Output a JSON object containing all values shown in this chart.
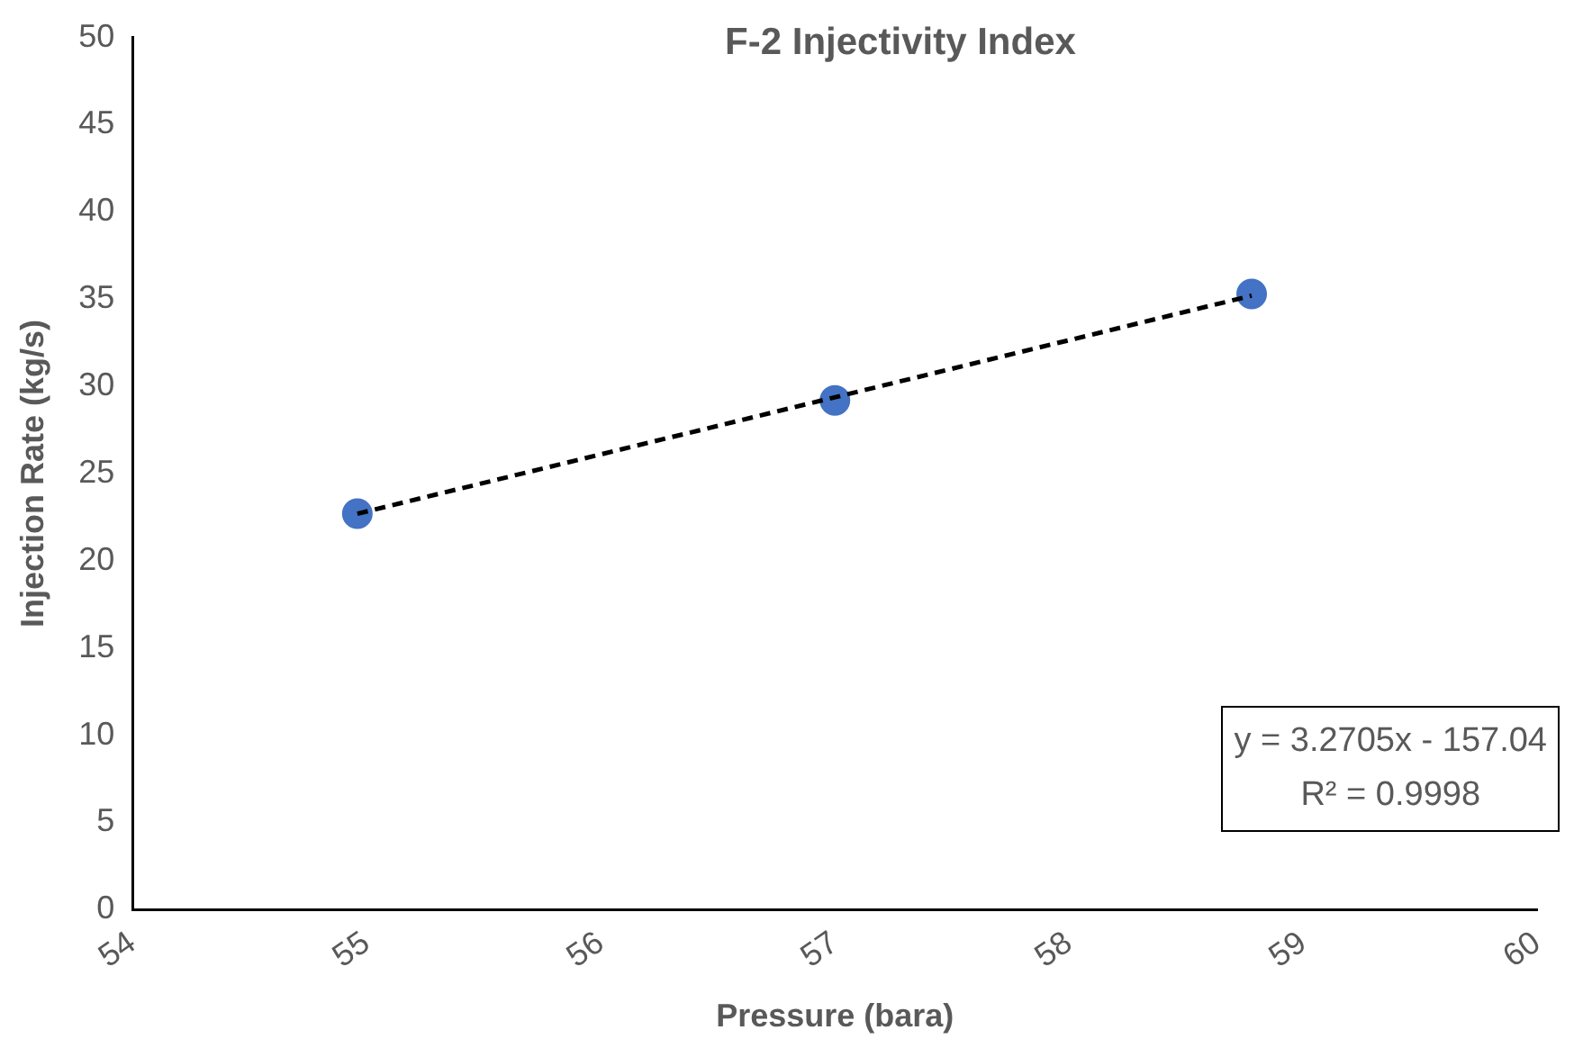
{
  "chart_data": {
    "type": "scatter",
    "title": "F-2 Injectivity Index",
    "xlabel": "Pressure (bara)",
    "ylabel": "Injection Rate (kg/s)",
    "series": [
      {
        "type": "scatter",
        "color": "#4472c4",
        "marker": "circle",
        "x": [
          54.96,
          57.0,
          58.78
        ],
        "values": [
          22.7,
          29.2,
          35.3
        ]
      },
      {
        "type": "line",
        "color": "#000000",
        "marker": "none",
        "line_style": "dashed",
        "x": [
          54.96,
          58.78
        ],
        "values": [
          22.7,
          35.2
        ]
      }
    ],
    "xlim": [
      54,
      60
    ],
    "xticks": [
      54,
      55,
      56,
      57,
      58,
      59,
      60
    ],
    "ylim": [
      0,
      50
    ],
    "yticks": [
      0,
      5,
      10,
      15,
      20,
      25,
      30,
      35,
      40,
      45,
      50
    ],
    "grid": false,
    "legend": false,
    "annotations": [
      "y = 3.2705x - 157.04\nR² = 0.9998"
    ]
  }
}
